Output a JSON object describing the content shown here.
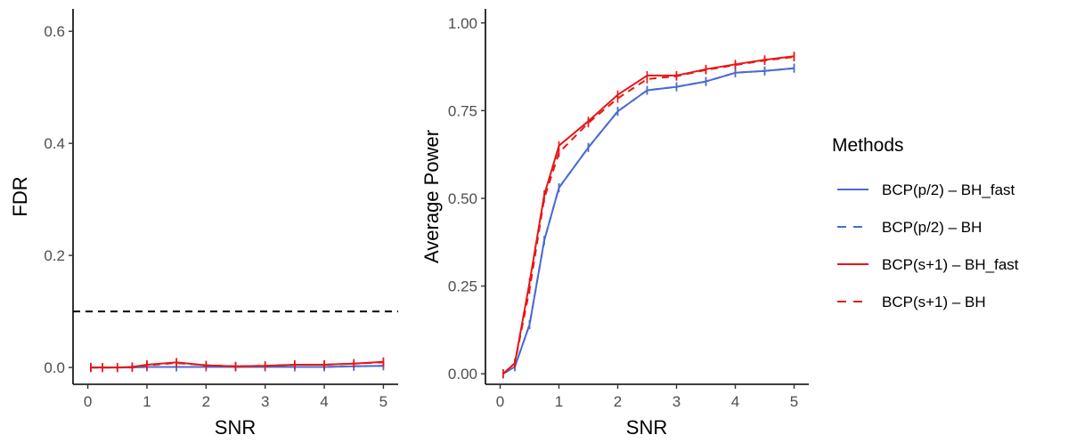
{
  "colors": {
    "blue": "#4a6bd2",
    "red": "#e81616",
    "reference": "#000000",
    "axis": "#000000",
    "tick_text": "#4d4d4d"
  },
  "legend": {
    "title": "Methods",
    "items": [
      {
        "label": "BCP(p/2) – BH_fast",
        "color": "#4a6bd2",
        "dash": "solid"
      },
      {
        "label": "BCP(p/2) – BH",
        "color": "#4a6bd2",
        "dash": "dashed"
      },
      {
        "label": "BCP(s+1) – BH_fast",
        "color": "#e81616",
        "dash": "solid"
      },
      {
        "label": "BCP(s+1) – BH",
        "color": "#e81616",
        "dash": "dashed"
      }
    ]
  },
  "chart_data": [
    {
      "type": "line",
      "xlabel": "SNR",
      "ylabel": "FDR",
      "xlim": [
        -0.25,
        5.25
      ],
      "ylim": [
        -0.03,
        0.64
      ],
      "xticks": [
        0,
        1,
        2,
        3,
        4,
        5
      ],
      "yticks": [
        0.0,
        0.2,
        0.4,
        0.6
      ],
      "ytick_labels": [
        "0.0",
        "0.2",
        "0.4",
        "0.6"
      ],
      "grid": false,
      "reference_line": {
        "y": 0.1,
        "style": "dashed",
        "color": "#000000"
      },
      "x": [
        0.05,
        0.25,
        0.5,
        0.75,
        1,
        1.5,
        2,
        2.5,
        3,
        3.5,
        4,
        4.5,
        5
      ],
      "series": [
        {
          "name": "BCP(p/2) – BH_fast",
          "color": "#4a6bd2",
          "dash": "solid",
          "values": [
            0,
            0,
            0,
            0,
            0.001,
            0.001,
            0.001,
            0.001,
            0.001,
            0.001,
            0.001,
            0.002,
            0.003
          ]
        },
        {
          "name": "BCP(p/2) – BH",
          "color": "#4a6bd2",
          "dash": "dashed",
          "values": [
            0,
            0,
            0,
            0,
            0.001,
            0.001,
            0.001,
            0.001,
            0.001,
            0.001,
            0.001,
            0.002,
            0.003
          ]
        },
        {
          "name": "BCP(s+1) – BH_fast",
          "color": "#e81616",
          "dash": "solid",
          "values": [
            0,
            0,
            0,
            0.001,
            0.005,
            0.009,
            0.004,
            0.002,
            0.003,
            0.005,
            0.005,
            0.007,
            0.01
          ]
        },
        {
          "name": "BCP(s+1) – BH",
          "color": "#e81616",
          "dash": "dashed",
          "values": [
            0,
            0,
            0,
            0.001,
            0.004,
            0.008,
            0.004,
            0.002,
            0.003,
            0.005,
            0.005,
            0.007,
            0.009
          ]
        }
      ]
    },
    {
      "type": "line",
      "xlabel": "SNR",
      "ylabel": "Average Power",
      "xlim": [
        -0.25,
        5.25
      ],
      "ylim": [
        -0.03,
        1.04
      ],
      "xticks": [
        0,
        1,
        2,
        3,
        4,
        5
      ],
      "yticks": [
        0.0,
        0.25,
        0.5,
        0.75,
        1.0
      ],
      "ytick_labels": [
        "0.00",
        "0.25",
        "0.50",
        "0.75",
        "1.00"
      ],
      "grid": false,
      "x": [
        0.05,
        0.25,
        0.5,
        0.75,
        1,
        1.5,
        2,
        2.5,
        3,
        3.5,
        4,
        4.5,
        5
      ],
      "series": [
        {
          "name": "BCP(p/2) – BH_fast",
          "color": "#4a6bd2",
          "dash": "solid",
          "values": [
            0,
            0.02,
            0.14,
            0.38,
            0.53,
            0.645,
            0.748,
            0.808,
            0.818,
            0.833,
            0.858,
            0.863,
            0.871
          ]
        },
        {
          "name": "BCP(p/2) – BH",
          "color": "#4a6bd2",
          "dash": "dashed",
          "values": [
            0,
            0.02,
            0.14,
            0.38,
            0.53,
            0.645,
            0.748,
            0.808,
            0.818,
            0.833,
            0.858,
            0.863,
            0.871
          ]
        },
        {
          "name": "BCP(s+1) – BH_fast",
          "color": "#e81616",
          "dash": "solid",
          "values": [
            0,
            0.03,
            0.26,
            0.51,
            0.65,
            0.72,
            0.795,
            0.85,
            0.85,
            0.868,
            0.882,
            0.895,
            0.905
          ]
        },
        {
          "name": "BCP(s+1) – BH",
          "color": "#e81616",
          "dash": "dashed",
          "values": [
            0,
            0.03,
            0.24,
            0.5,
            0.63,
            0.715,
            0.785,
            0.84,
            0.848,
            0.866,
            0.88,
            0.893,
            0.903
          ]
        }
      ]
    }
  ]
}
